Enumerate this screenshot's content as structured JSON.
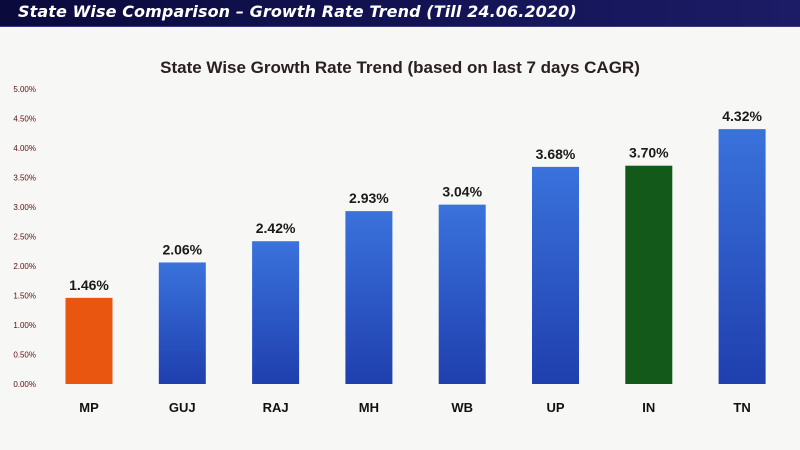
{
  "banner": {
    "title": "State Wise Comparison – Growth Rate Trend (Till 24.06.2020)"
  },
  "chart_data": {
    "type": "bar",
    "title": "State Wise Growth Rate Trend (based on last 7 days CAGR)",
    "xlabel": "",
    "ylabel": "",
    "categories": [
      "MP",
      "GUJ",
      "RAJ",
      "MH",
      "WB",
      "UP",
      "IN",
      "TN"
    ],
    "values": [
      1.46,
      2.06,
      2.42,
      2.93,
      3.04,
      3.68,
      3.7,
      4.32
    ],
    "data_labels": [
      "1.46%",
      "2.06%",
      "2.42%",
      "2.93%",
      "3.04%",
      "3.68%",
      "3.70%",
      "4.32%"
    ],
    "bar_colors": [
      "#e8560f",
      "#2f5fcf",
      "#2f5fcf",
      "#2f5fcf",
      "#2f5fcf",
      "#2f5fcf",
      "#135a1a",
      "#2f5fcf"
    ],
    "ylim": [
      0,
      5
    ],
    "yticks": [
      0,
      0.5,
      1,
      1.5,
      2,
      2.5,
      3,
      3.5,
      4,
      4.5,
      5
    ],
    "ytick_labels": [
      "0.00%",
      "0.50%",
      "1.00%",
      "1.50%",
      "2.00%",
      "2.50%",
      "3.00%",
      "3.50%",
      "4.00%",
      "4.50%",
      "5.00%"
    ],
    "grid": false,
    "legend": "none"
  }
}
